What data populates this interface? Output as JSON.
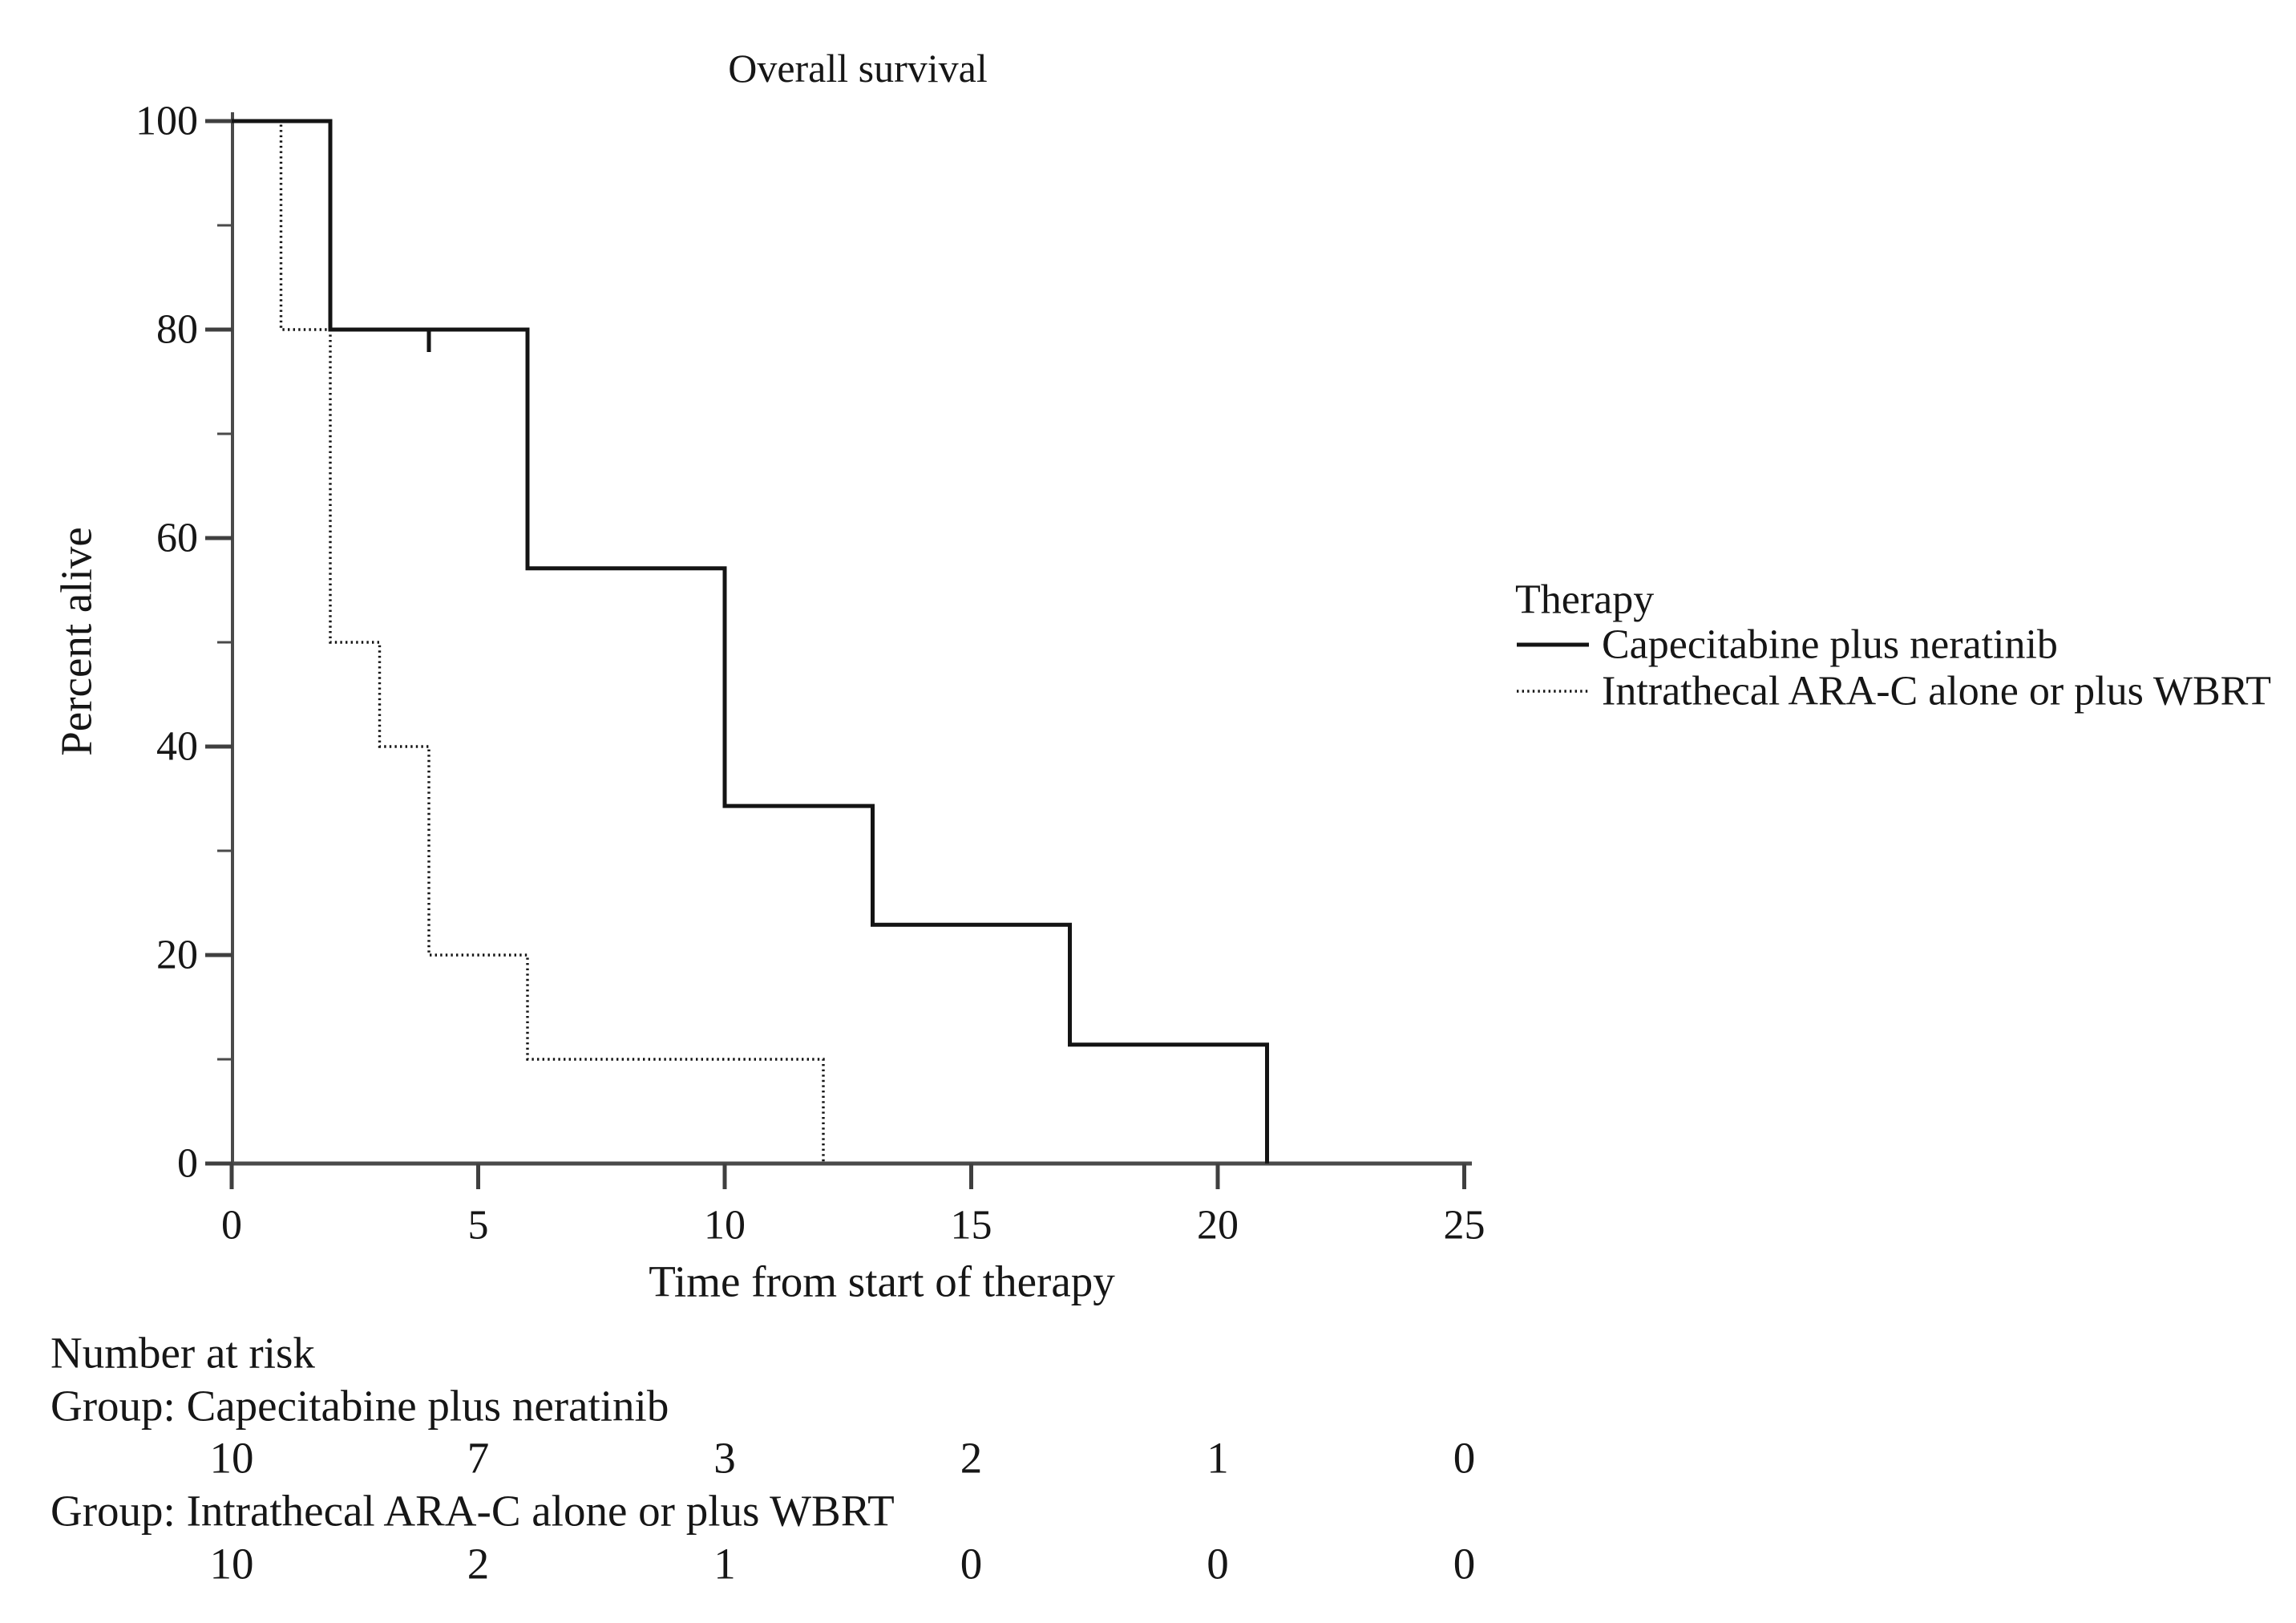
{
  "figure_title": "Overall survival",
  "legend": {
    "title": "Therapy"
  },
  "axes": {
    "x": {
      "label": "Time from start of therapy",
      "ticks": [
        0,
        5,
        10,
        15,
        20,
        25
      ]
    },
    "y": {
      "label": "Percent alive",
      "major_ticks": [
        0,
        20,
        40,
        60,
        80,
        100
      ],
      "minor_ticks": [
        10,
        30,
        50,
        70,
        90
      ]
    }
  },
  "chart_data": {
    "type": "line",
    "subtype": "kaplan-meier-step",
    "title": "Overall survival",
    "xlabel": "Time from start of therapy",
    "ylabel": "Percent alive",
    "xlim": [
      0,
      25
    ],
    "ylim": [
      0,
      100
    ],
    "grid": false,
    "legend_position": "right",
    "legend_title": "Therapy",
    "series": [
      {
        "name": "Capecitabine plus neratinib",
        "line_style": "solid",
        "color": "#141414",
        "step_points": [
          [
            0,
            100
          ],
          [
            2,
            100
          ],
          [
            2,
            80
          ],
          [
            6,
            80
          ],
          [
            6,
            57.1
          ],
          [
            10,
            57.1
          ],
          [
            10,
            34.3
          ],
          [
            13,
            34.3
          ],
          [
            13,
            22.9
          ],
          [
            17,
            22.9
          ],
          [
            17,
            11.4
          ],
          [
            21,
            11.4
          ],
          [
            21,
            0
          ]
        ],
        "censor_marks": [
          [
            4,
            80
          ]
        ]
      },
      {
        "name": "Intrathecal ARA-C alone or plus WBRT",
        "line_style": "dotted",
        "color": "#141414",
        "step_points": [
          [
            0,
            100
          ],
          [
            1,
            100
          ],
          [
            1,
            80
          ],
          [
            2,
            80
          ],
          [
            2,
            50
          ],
          [
            3,
            50
          ],
          [
            3,
            40
          ],
          [
            4,
            40
          ],
          [
            4,
            20
          ],
          [
            6,
            20
          ],
          [
            6,
            10
          ],
          [
            12,
            10
          ],
          [
            12,
            0
          ]
        ],
        "censor_marks": []
      }
    ],
    "number_at_risk": {
      "heading": "Number at risk",
      "times": [
        0,
        5,
        10,
        15,
        20,
        25
      ],
      "groups": [
        {
          "label": "Group: Capecitabine plus neratinib",
          "counts": [
            10,
            7,
            3,
            2,
            1,
            0
          ]
        },
        {
          "label": "Group: Intrathecal ARA-C alone or plus WBRT",
          "counts": [
            10,
            2,
            1,
            0,
            0,
            0
          ]
        }
      ]
    }
  },
  "colors": {
    "background": "#ffffff",
    "text": "#161616",
    "axis": "#4a4a4a",
    "curve": "#141414"
  }
}
